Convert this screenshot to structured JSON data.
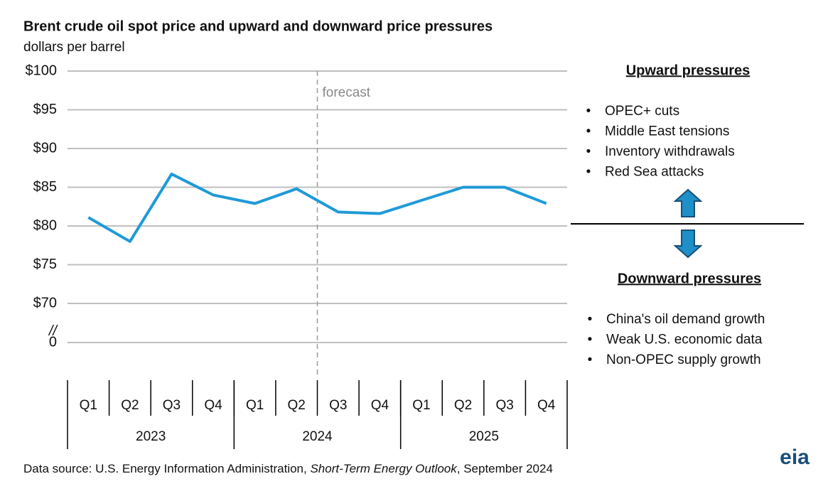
{
  "chart_data": {
    "type": "line",
    "title": "Brent crude oil spot price and upward and downward price pressures",
    "subtitle": "dollars per barrel",
    "categories": [
      "Q1",
      "Q2",
      "Q3",
      "Q4",
      "Q1",
      "Q2",
      "Q3",
      "Q4",
      "Q1",
      "Q2",
      "Q3",
      "Q4"
    ],
    "groups": [
      "2023",
      "2024",
      "2025"
    ],
    "values": [
      81.1,
      78.0,
      86.7,
      84.0,
      82.9,
      84.8,
      81.8,
      81.6,
      83.3,
      85.0,
      85.0,
      82.9
    ],
    "color": "#1f9ad8",
    "ylim": [
      0,
      100
    ],
    "yticks": [
      {
        "value": 0,
        "label": "0"
      },
      {
        "value": 70,
        "label": "$70"
      },
      {
        "value": 75,
        "label": "$75"
      },
      {
        "value": 80,
        "label": "$80"
      },
      {
        "value": 85,
        "label": "$85"
      },
      {
        "value": 90,
        "label": "$90"
      },
      {
        "value": 95,
        "label": "$95"
      },
      {
        "value": 100,
        "label": "$100"
      }
    ],
    "axis_break": {
      "from": 0,
      "to": 70,
      "label": "//"
    },
    "grid": true,
    "forecast": {
      "label": "forecast",
      "from_index": 6
    }
  },
  "upward": {
    "title": "Upward pressures",
    "items": [
      "OPEC+ cuts",
      "Middle East tensions",
      "Inventory withdrawals",
      "Red Sea attacks"
    ]
  },
  "downward": {
    "title": "Downward pressures",
    "items": [
      "China's oil demand growth",
      "Weak U.S. economic data",
      "Non-OPEC supply growth"
    ]
  },
  "source": {
    "prefix": "Data source: U.S. Energy Information Administration, ",
    "italic": "Short-Term Energy Outlook",
    "suffix": ", September 2024"
  },
  "logo": "eia"
}
